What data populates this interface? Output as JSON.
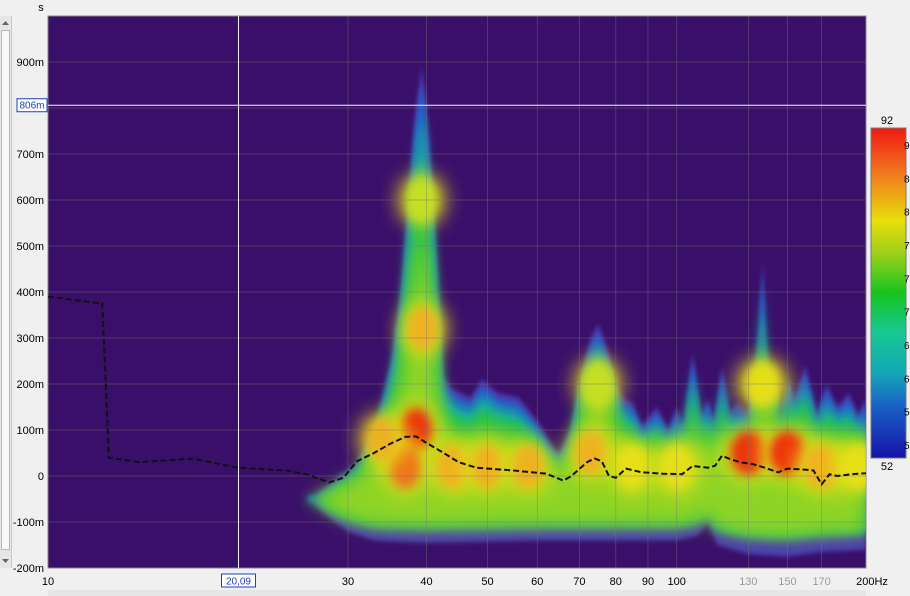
{
  "chart_data": {
    "type": "heatmap",
    "subtype": "waterfall / spectrogram",
    "title": "",
    "xlabel": "",
    "ylabel": "",
    "y_unit": "s",
    "x_unit": "Hz",
    "x_scale": "log",
    "xlim": [
      10,
      200
    ],
    "ylim": [
      -0.2,
      1.0
    ],
    "y_ticks": [
      {
        "value": 0.9,
        "label": "900m"
      },
      {
        "value": 0.8,
        "label": ""
      },
      {
        "value": 0.7,
        "label": "700m"
      },
      {
        "value": 0.6,
        "label": "600m"
      },
      {
        "value": 0.5,
        "label": "500m"
      },
      {
        "value": 0.4,
        "label": "400m"
      },
      {
        "value": 0.3,
        "label": "300m"
      },
      {
        "value": 0.2,
        "label": "200m"
      },
      {
        "value": 0.1,
        "label": "100m"
      },
      {
        "value": 0.0,
        "label": "0"
      },
      {
        "value": -0.1,
        "label": "-100m"
      },
      {
        "value": -0.2,
        "label": "-200m"
      }
    ],
    "x_ticks": [
      {
        "value": 10,
        "label": "10",
        "grey": false
      },
      {
        "value": 30,
        "label": "30",
        "grey": false
      },
      {
        "value": 40,
        "label": "40",
        "grey": false
      },
      {
        "value": 50,
        "label": "50",
        "grey": false
      },
      {
        "value": 60,
        "label": "60",
        "grey": false
      },
      {
        "value": 70,
        "label": "70",
        "grey": false
      },
      {
        "value": 80,
        "label": "80",
        "grey": false
      },
      {
        "value": 90,
        "label": "90",
        "grey": false
      },
      {
        "value": 100,
        "label": "100",
        "grey": false
      },
      {
        "value": 130,
        "label": "130",
        "grey": true
      },
      {
        "value": 150,
        "label": "150",
        "grey": true
      },
      {
        "value": 170,
        "label": "170",
        "grey": true
      },
      {
        "value": 200,
        "label": "200Hz",
        "grey": false
      }
    ],
    "cursor": {
      "x": 20.09,
      "x_label": "20,09",
      "y": 0.806,
      "y_label": "806m"
    },
    "colorbar": {
      "min": 52,
      "max": 92,
      "min_label": "52",
      "max_label": "92",
      "tick_labels": [
        "9",
        "8",
        "8",
        "7",
        "7",
        "7",
        "6",
        "6",
        "5",
        "5"
      ]
    },
    "decay_curve": {
      "style": "dashed",
      "color": "#111111",
      "points": [
        [
          10,
          0.39
        ],
        [
          12.2,
          0.375
        ],
        [
          12.5,
          0.04
        ],
        [
          14,
          0.03
        ],
        [
          17,
          0.038
        ],
        [
          20,
          0.018
        ],
        [
          24,
          0.012
        ],
        [
          26,
          0.002
        ],
        [
          28,
          -0.014
        ],
        [
          29.5,
          -0.004
        ],
        [
          31,
          0.032
        ],
        [
          33,
          0.05
        ],
        [
          35,
          0.07
        ],
        [
          37,
          0.085
        ],
        [
          38.5,
          0.086
        ],
        [
          40,
          0.072
        ],
        [
          42,
          0.055
        ],
        [
          45,
          0.03
        ],
        [
          48,
          0.018
        ],
        [
          55,
          0.012
        ],
        [
          62,
          0.005
        ],
        [
          66,
          -0.01
        ],
        [
          68,
          0.0
        ],
        [
          72,
          0.03
        ],
        [
          74,
          0.038
        ],
        [
          76,
          0.032
        ],
        [
          78,
          0.0
        ],
        [
          80,
          -0.004
        ],
        [
          83,
          0.016
        ],
        [
          88,
          0.008
        ],
        [
          95,
          0.005
        ],
        [
          102,
          0.004
        ],
        [
          106,
          0.022
        ],
        [
          112,
          0.018
        ],
        [
          115,
          0.022
        ],
        [
          118,
          0.044
        ],
        [
          121,
          0.038
        ],
        [
          126,
          0.03
        ],
        [
          132,
          0.026
        ],
        [
          138,
          0.018
        ],
        [
          145,
          0.008
        ],
        [
          150,
          0.016
        ],
        [
          160,
          0.014
        ],
        [
          165,
          0.012
        ],
        [
          170,
          -0.018
        ],
        [
          175,
          0.004
        ],
        [
          180,
          0.0
        ],
        [
          190,
          0.004
        ],
        [
          200,
          0.006
        ]
      ]
    },
    "energy_envelope": {
      "top": [
        [
          26,
          -0.05
        ],
        [
          28,
          -0.02
        ],
        [
          31,
          0.03
        ],
        [
          33,
          0.1
        ],
        [
          34.5,
          0.2
        ],
        [
          35.5,
          0.28
        ],
        [
          36.5,
          0.4
        ],
        [
          37.5,
          0.6
        ],
        [
          38.5,
          0.8
        ],
        [
          39.3,
          0.89
        ],
        [
          40,
          0.8
        ],
        [
          41,
          0.58
        ],
        [
          41.7,
          0.36
        ],
        [
          42.3,
          0.22
        ],
        [
          44,
          0.19
        ],
        [
          47,
          0.17
        ],
        [
          49,
          0.21
        ],
        [
          52,
          0.18
        ],
        [
          56,
          0.17
        ],
        [
          60,
          0.12
        ],
        [
          63,
          0.07
        ],
        [
          65,
          0.05
        ],
        [
          68,
          0.1
        ],
        [
          70,
          0.2
        ],
        [
          73,
          0.3
        ],
        [
          75,
          0.33
        ],
        [
          77,
          0.29
        ],
        [
          80,
          0.2
        ],
        [
          82,
          0.17
        ],
        [
          85,
          0.16
        ],
        [
          88,
          0.11
        ],
        [
          93,
          0.15
        ],
        [
          97,
          0.1
        ],
        [
          100,
          0.15
        ],
        [
          103,
          0.11
        ],
        [
          106,
          0.27
        ],
        [
          109,
          0.13
        ],
        [
          112,
          0.17
        ],
        [
          115,
          0.11
        ],
        [
          118,
          0.24
        ],
        [
          121,
          0.14
        ],
        [
          125,
          0.16
        ],
        [
          130,
          0.14
        ],
        [
          134,
          0.22
        ],
        [
          137,
          0.47
        ],
        [
          139,
          0.22
        ],
        [
          143,
          0.24
        ],
        [
          146,
          0.12
        ],
        [
          150,
          0.22
        ],
        [
          154,
          0.17
        ],
        [
          160,
          0.24
        ],
        [
          167,
          0.13
        ],
        [
          173,
          0.2
        ],
        [
          180,
          0.15
        ],
        [
          188,
          0.18
        ],
        [
          194,
          0.13
        ],
        [
          200,
          0.17
        ]
      ],
      "bottom": [
        [
          26,
          -0.05
        ],
        [
          28,
          -0.09
        ],
        [
          30,
          -0.12
        ],
        [
          33,
          -0.14
        ],
        [
          40,
          -0.145
        ],
        [
          60,
          -0.14
        ],
        [
          80,
          -0.14
        ],
        [
          100,
          -0.14
        ],
        [
          108,
          -0.13
        ],
        [
          112,
          -0.1
        ],
        [
          116,
          -0.15
        ],
        [
          130,
          -0.17
        ],
        [
          150,
          -0.175
        ],
        [
          170,
          -0.165
        ],
        [
          200,
          -0.16
        ]
      ]
    },
    "hotspots": [
      {
        "x": 38.5,
        "y": 0.1,
        "level": 92
      },
      {
        "x": 37,
        "y": 0.02,
        "level": 88
      },
      {
        "x": 39.5,
        "y": 0.32,
        "level": 80
      },
      {
        "x": 39.3,
        "y": 0.6,
        "level": 70
      },
      {
        "x": 34,
        "y": 0.08,
        "level": 80
      },
      {
        "x": 44,
        "y": 0.02,
        "level": 84
      },
      {
        "x": 50,
        "y": 0.02,
        "level": 82
      },
      {
        "x": 58,
        "y": 0.02,
        "level": 80
      },
      {
        "x": 73,
        "y": 0.05,
        "level": 82
      },
      {
        "x": 75,
        "y": 0.2,
        "level": 72
      },
      {
        "x": 85,
        "y": 0.02,
        "level": 78
      },
      {
        "x": 100,
        "y": 0.02,
        "level": 78
      },
      {
        "x": 130,
        "y": 0.05,
        "level": 90
      },
      {
        "x": 150,
        "y": 0.05,
        "level": 92
      },
      {
        "x": 137,
        "y": 0.2,
        "level": 74
      },
      {
        "x": 170,
        "y": 0.02,
        "level": 80
      },
      {
        "x": 195,
        "y": 0.02,
        "level": 78
      }
    ]
  }
}
